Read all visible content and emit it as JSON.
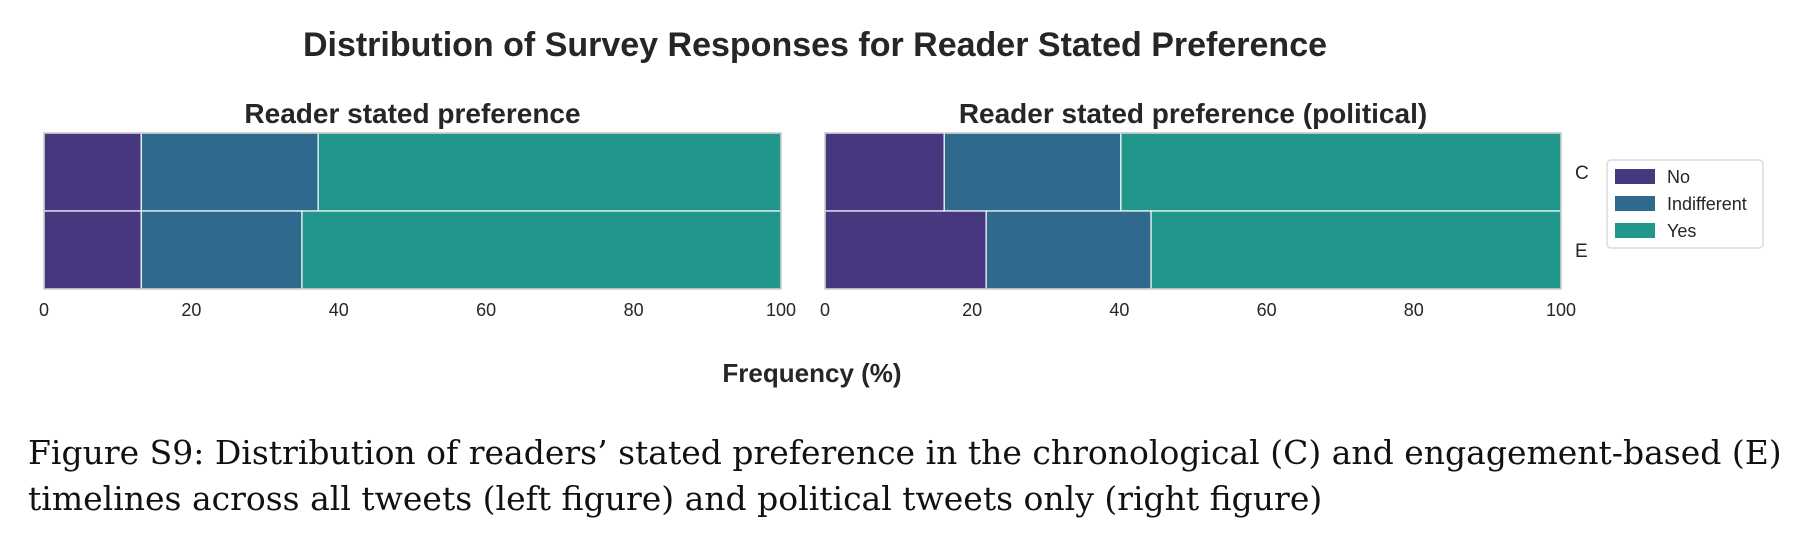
{
  "figure": {
    "suptitle": "Distribution of Survey Responses for Reader Stated Preference",
    "xlabel": "Frequency (%)",
    "caption": "Figure S9: Distribution of readers’ stated preference in the chronological (C) and engagement-based (E)\ntimelines across all tweets (left figure) and political tweets only (right figure)"
  },
  "colors": {
    "No": "#46377f",
    "Indifferent": "#2f6a8e",
    "Yes": "#21968a"
  },
  "chart_data": [
    {
      "type": "bar",
      "orientation": "horizontal",
      "stacked": true,
      "title": "Reader stated preference",
      "categories": [
        "C",
        "E"
      ],
      "series": [
        {
          "name": "No",
          "values": [
            13.2,
            13.2
          ]
        },
        {
          "name": "Indifferent",
          "values": [
            24.0,
            21.8
          ]
        },
        {
          "name": "Yes",
          "values": [
            62.8,
            65.0
          ]
        }
      ],
      "xlim": [
        0,
        100
      ],
      "xticks": [
        "0",
        "20",
        "40",
        "60",
        "80",
        "100"
      ],
      "grid": true
    },
    {
      "type": "bar",
      "orientation": "horizontal",
      "stacked": true,
      "title": "Reader stated preference (political)",
      "categories": [
        "C",
        "E"
      ],
      "series": [
        {
          "name": "No",
          "values": [
            16.2,
            21.9
          ]
        },
        {
          "name": "Indifferent",
          "values": [
            24.0,
            22.4
          ]
        },
        {
          "name": "Yes",
          "values": [
            59.8,
            55.7
          ]
        }
      ],
      "xlim": [
        0,
        100
      ],
      "xticks": [
        "0",
        "20",
        "40",
        "60",
        "80",
        "100"
      ],
      "grid": true,
      "legend": {
        "placement": "right",
        "entries": [
          "No",
          "Indifferent",
          "Yes"
        ]
      }
    }
  ]
}
